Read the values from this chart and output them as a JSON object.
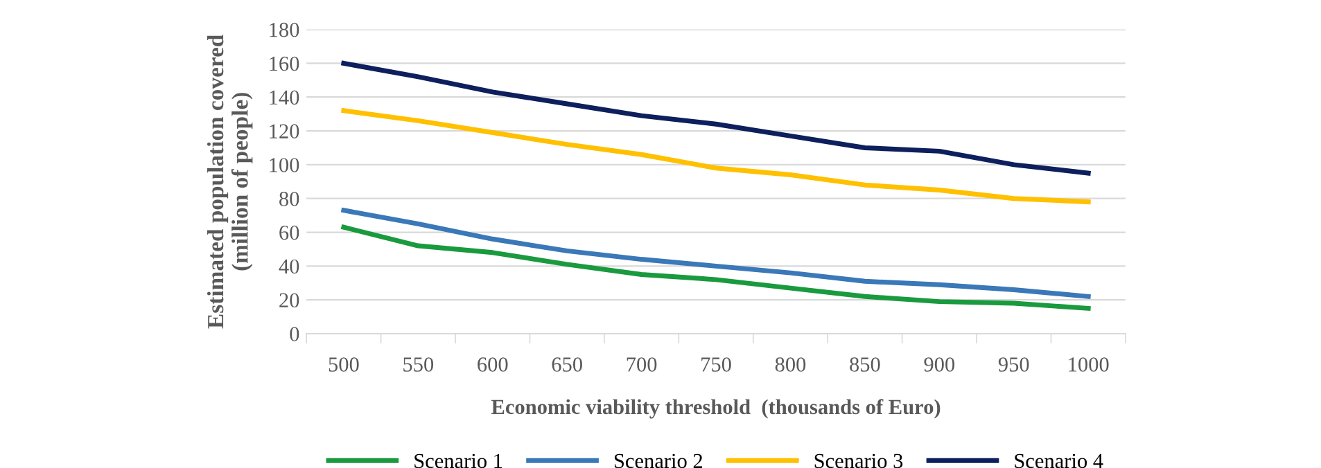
{
  "chart_data": {
    "type": "line",
    "xlabel": "Economic viability threshold  (thousands of Euro)",
    "ylabel": "Estimated population covered\n(million of people)",
    "categories": [
      "500",
      "550",
      "600",
      "650",
      "700",
      "750",
      "800",
      "850",
      "900",
      "950",
      "1000"
    ],
    "series": [
      {
        "name": "Scenario 1",
        "color": "#1a9a3e",
        "values": [
          63,
          52,
          48,
          41,
          35,
          32,
          27,
          22,
          19,
          18,
          15
        ]
      },
      {
        "name": "Scenario 2",
        "color": "#3a78b8",
        "values": [
          73,
          65,
          56,
          49,
          44,
          40,
          36,
          31,
          29,
          26,
          22
        ]
      },
      {
        "name": "Scenario 3",
        "color": "#ffc000",
        "values": [
          132,
          126,
          119,
          112,
          106,
          98,
          94,
          88,
          85,
          80,
          78
        ]
      },
      {
        "name": "Scenario 4",
        "color": "#0d1f5c",
        "values": [
          160,
          152,
          143,
          136,
          129,
          124,
          117,
          110,
          108,
          100,
          95
        ]
      }
    ],
    "ylim": [
      0,
      180
    ],
    "yticks": [
      0,
      20,
      40,
      60,
      80,
      100,
      120,
      140,
      160,
      180
    ],
    "grid": "y",
    "legend": "bottom",
    "marker": "none",
    "line_style": "solid"
  }
}
